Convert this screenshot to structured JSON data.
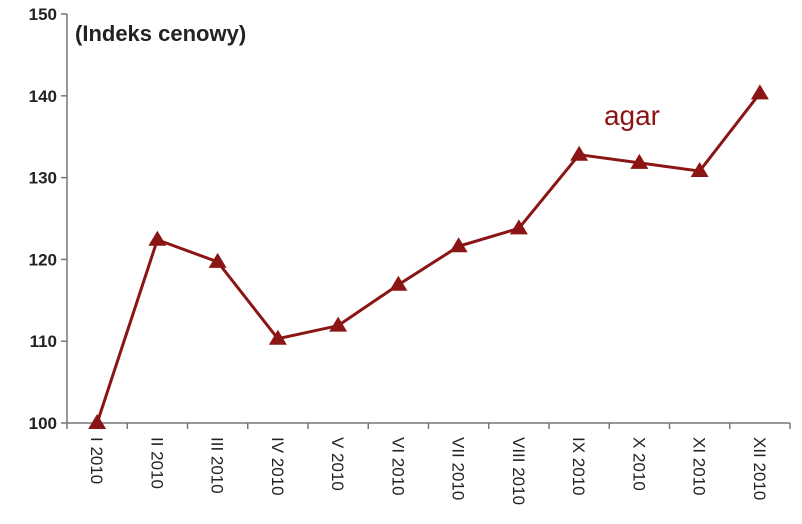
{
  "chart_data": {
    "type": "line",
    "title": "(Indeks cenowy)",
    "categories": [
      "I 2010",
      "II 2010",
      "III 2010",
      "IV 2010",
      "V 2010",
      "VI 2010",
      "VII 2010",
      "VIII 2010",
      "IX 2010",
      "X 2010",
      "XI 2010",
      "XII 2010"
    ],
    "series": [
      {
        "name": "agar",
        "color": "#8b1414",
        "values": [
          100,
          122.4,
          119.7,
          110.3,
          111.9,
          116.9,
          121.6,
          123.8,
          132.8,
          131.8,
          130.8,
          140.3
        ]
      }
    ],
    "ylim": [
      100,
      150
    ],
    "yticks": [
      100,
      110,
      120,
      130,
      140,
      150
    ],
    "grid": false
  }
}
